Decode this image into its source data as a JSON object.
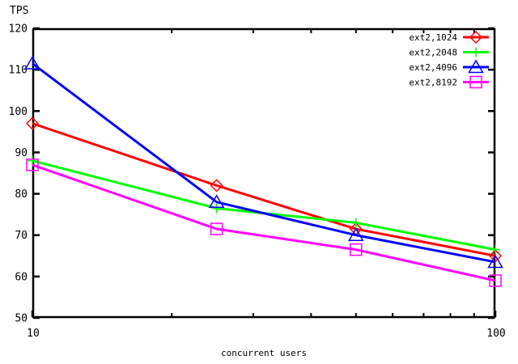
{
  "page": {
    "background": "#ffffff",
    "axis_color": "#000000"
  },
  "chart_data": {
    "type": "line",
    "title": "",
    "ylabel": "TPS",
    "xlabel": "concurrent users",
    "x_scale": "log",
    "x": [
      10,
      25,
      50,
      100
    ],
    "xlim": [
      10,
      100
    ],
    "ylim": [
      50,
      120
    ],
    "y_ticks": [
      50,
      60,
      70,
      80,
      90,
      100,
      110,
      120
    ],
    "x_major_ticks": [
      10,
      100
    ],
    "x_minor_ticks": [
      20,
      30,
      40,
      50,
      60,
      70,
      80,
      90
    ],
    "grid": false,
    "legend_position": "top-right-inside",
    "series": [
      {
        "name": "ext2,1024",
        "color": "#ff0000",
        "marker": "diamond",
        "values": [
          97,
          82,
          71.5,
          65
        ]
      },
      {
        "name": "ext2,2048",
        "color": "#00ff00",
        "marker": "plus",
        "values": [
          88,
          76.5,
          73,
          66.5
        ]
      },
      {
        "name": "ext2,4096",
        "color": "#0000ff",
        "marker": "triangle-up",
        "values": [
          111.5,
          78,
          70,
          63.5
        ]
      },
      {
        "name": "ext2,8192",
        "color": "#ff00ff",
        "marker": "square",
        "values": [
          87,
          71.5,
          66.5,
          59
        ]
      }
    ]
  }
}
